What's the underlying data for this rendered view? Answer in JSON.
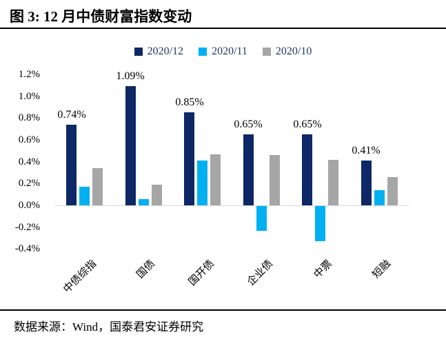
{
  "header": {
    "title": "图 3: 12 月中债财富指数变动"
  },
  "footer": {
    "source": "数据来源：Wind，国泰君安证券研究"
  },
  "colors": {
    "series_2020_12": "#0e2766",
    "series_2020_11": "#00b0f0",
    "series_2020_10": "#a6a6a6",
    "legend_text": "#1f3864",
    "axis_baseline": "#d9d9d9",
    "rule": "#000000"
  },
  "chart_data": {
    "type": "bar",
    "title": "图 3: 12 月中债财富指数变动",
    "categories": [
      "中债综指",
      "国债",
      "国开债",
      "企业债",
      "中票",
      "短融"
    ],
    "series": [
      {
        "name": "2020/12",
        "color": "#0e2766",
        "values": [
          0.74,
          1.09,
          0.85,
          0.65,
          0.65,
          0.41
        ],
        "data_labels": [
          "0.74%",
          "1.09%",
          "0.85%",
          "0.65%",
          "0.65%",
          "0.41%"
        ]
      },
      {
        "name": "2020/11",
        "color": "#00b0f0",
        "values": [
          0.17,
          0.06,
          0.41,
          -0.23,
          -0.32,
          0.14
        ],
        "data_labels": null
      },
      {
        "name": "2020/10",
        "color": "#a6a6a6",
        "values": [
          0.34,
          0.19,
          0.47,
          0.46,
          0.42,
          0.26
        ],
        "data_labels": null
      }
    ],
    "xlabel": "",
    "ylabel": "",
    "ylim": [
      -0.4,
      1.2
    ],
    "ytick_step": 0.2,
    "ytick_labels": [
      "1.2%",
      "1.0%",
      "0.8%",
      "0.6%",
      "0.4%",
      "0.2%",
      "0.0%",
      "-0.2%",
      "-0.4%"
    ],
    "grid": false,
    "legend_position": "top",
    "x_label_rotation_deg": 45
  }
}
